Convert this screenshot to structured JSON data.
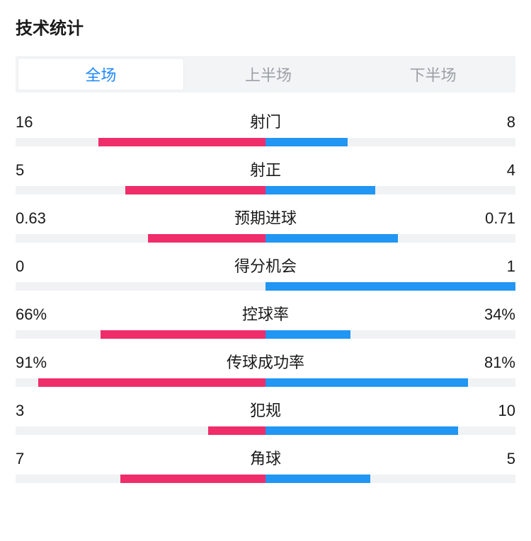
{
  "title": "技术统计",
  "colors": {
    "left": "#ef2d6b",
    "right": "#2196f3",
    "track": "#f1f2f4",
    "text": "#1a1a1a",
    "tab_inactive": "#9aa0a6",
    "tab_active": "#1e88ff",
    "tab_bg": "#f3f4f6",
    "bg": "#ffffff"
  },
  "tabs": [
    {
      "label": "全场",
      "active": true
    },
    {
      "label": "上半场",
      "active": false
    },
    {
      "label": "下半场",
      "active": false
    }
  ],
  "bar_max_pct": 100,
  "stats": [
    {
      "label": "射门",
      "left_display": "16",
      "right_display": "8",
      "left_pct": 67,
      "right_pct": 33
    },
    {
      "label": "射正",
      "left_display": "5",
      "right_display": "4",
      "left_pct": 56,
      "right_pct": 44
    },
    {
      "label": "预期进球",
      "left_display": "0.63",
      "right_display": "0.71",
      "left_pct": 47,
      "right_pct": 53
    },
    {
      "label": "得分机会",
      "left_display": "0",
      "right_display": "1",
      "left_pct": 0,
      "right_pct": 100
    },
    {
      "label": "控球率",
      "left_display": "66%",
      "right_display": "34%",
      "left_pct": 66,
      "right_pct": 34
    },
    {
      "label": "传球成功率",
      "left_display": "91%",
      "right_display": "81%",
      "left_pct": 91,
      "right_pct": 81
    },
    {
      "label": "犯规",
      "left_display": "3",
      "right_display": "10",
      "left_pct": 23,
      "right_pct": 77
    },
    {
      "label": "角球",
      "left_display": "7",
      "right_display": "5",
      "left_pct": 58,
      "right_pct": 42
    }
  ]
}
